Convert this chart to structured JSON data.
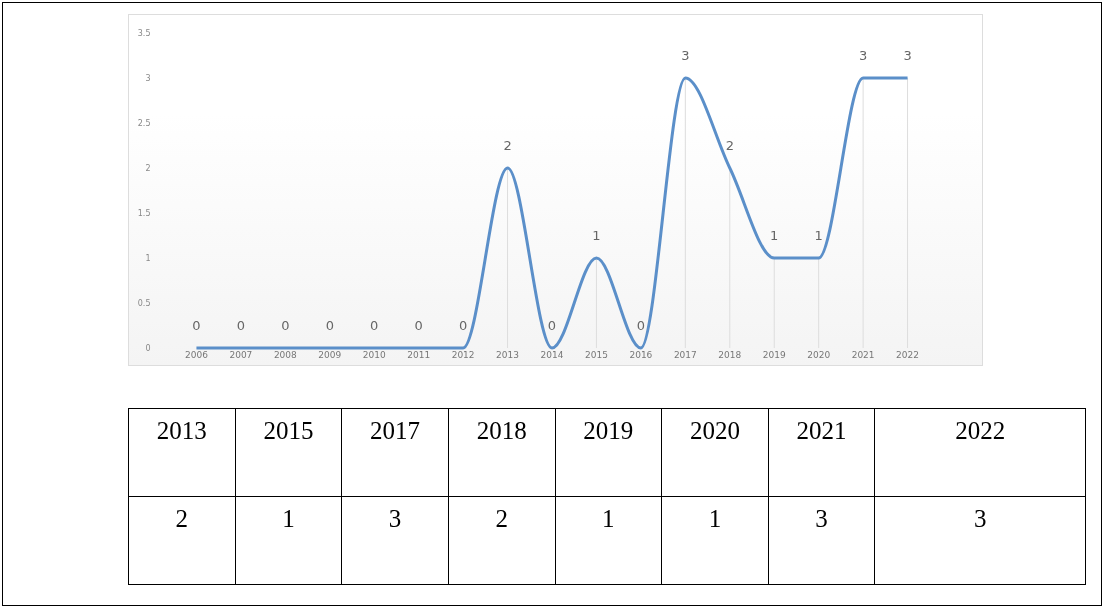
{
  "chart_data": {
    "type": "line",
    "categories": [
      "2006",
      "2007",
      "2008",
      "2009",
      "2010",
      "2011",
      "2012",
      "2013",
      "2014",
      "2015",
      "2016",
      "2017",
      "2018",
      "2019",
      "2020",
      "2021",
      "2022"
    ],
    "series": [
      {
        "color": "#5b8fc9",
        "values": [
          0,
          0,
          0,
          0,
          0,
          0,
          0,
          2,
          0,
          1,
          0,
          3,
          2,
          1,
          1,
          3,
          3
        ]
      }
    ],
    "ylim": [
      0,
      3.5
    ],
    "yticks": [
      0,
      0.5,
      1,
      1.5,
      2,
      2.5,
      3,
      3.5
    ],
    "annotations": [
      "2013",
      "2015",
      "2017",
      "2018",
      "2019",
      "2020",
      "2021",
      "2022",
      "2",
      "1",
      "3",
      "2",
      "1",
      "1",
      "3",
      "3"
    ],
    "data_labels": true,
    "grid": "x",
    "legend": false,
    "marker": "none",
    "line_style": "solid"
  }
}
